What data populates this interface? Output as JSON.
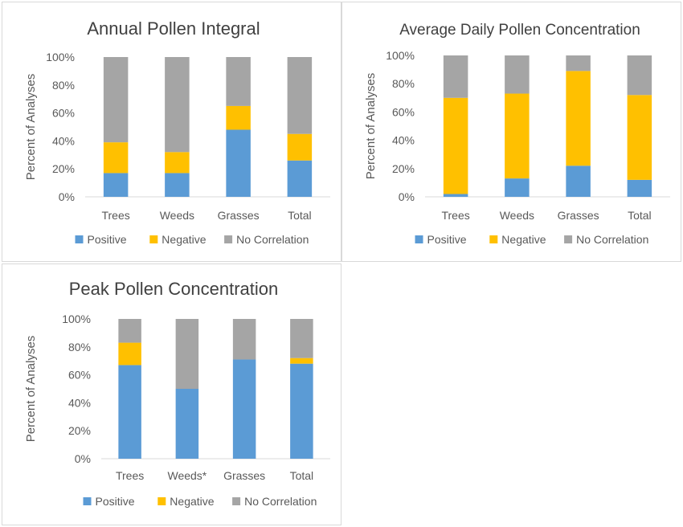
{
  "legend_labels": [
    "Positive",
    "Negative",
    "No Correlation"
  ],
  "colors": {
    "Positive": "#5b9bd5",
    "Negative": "#ffc000",
    "No Correlation": "#a5a5a5",
    "text": "#595959",
    "title": "#404040",
    "axis": "#d9d9d9"
  },
  "chart_data": [
    {
      "type": "bar",
      "stacked": true,
      "title": "Annual Pollen Integral",
      "ylabel": "Percent of Analyses",
      "xlabel": "",
      "ylim": [
        0,
        100
      ],
      "yticks": [
        "0%",
        "20%",
        "40%",
        "60%",
        "80%",
        "100%"
      ],
      "categories": [
        "Trees",
        "Weeds",
        "Grasses",
        "Total"
      ],
      "series": [
        {
          "name": "Positive",
          "values": [
            17,
            17,
            48,
            26
          ]
        },
        {
          "name": "Negative",
          "values": [
            22,
            15,
            17,
            19
          ]
        },
        {
          "name": "No Correlation",
          "values": [
            61,
            68,
            35,
            55
          ]
        }
      ],
      "grid": false,
      "legend": "bottom"
    },
    {
      "type": "bar",
      "stacked": true,
      "title": "Average Daily Pollen Concentration",
      "ylabel": "Percent of Analyses",
      "xlabel": "",
      "ylim": [
        0,
        100
      ],
      "yticks": [
        "0%",
        "20%",
        "40%",
        "60%",
        "80%",
        "100%"
      ],
      "categories": [
        "Trees",
        "Weeds",
        "Grasses",
        "Total"
      ],
      "series": [
        {
          "name": "Positive",
          "values": [
            2,
            13,
            22,
            12
          ]
        },
        {
          "name": "Negative",
          "values": [
            68,
            60,
            67,
            60
          ]
        },
        {
          "name": "No Correlation",
          "values": [
            30,
            27,
            11,
            28
          ]
        }
      ],
      "grid": false,
      "legend": "bottom"
    },
    {
      "type": "bar",
      "stacked": true,
      "title": "Peak Pollen Concentration",
      "ylabel": "Percent of Analyses",
      "xlabel": "",
      "ylim": [
        0,
        100
      ],
      "yticks": [
        "0%",
        "20%",
        "40%",
        "60%",
        "80%",
        "100%"
      ],
      "categories": [
        "Trees",
        "Weeds*",
        "Grasses",
        "Total"
      ],
      "series": [
        {
          "name": "Positive",
          "values": [
            67,
            50,
            71,
            68
          ]
        },
        {
          "name": "Negative",
          "values": [
            16,
            0,
            0,
            4
          ]
        },
        {
          "name": "No Correlation",
          "values": [
            17,
            50,
            29,
            28
          ]
        }
      ],
      "grid": false,
      "legend": "bottom"
    }
  ]
}
